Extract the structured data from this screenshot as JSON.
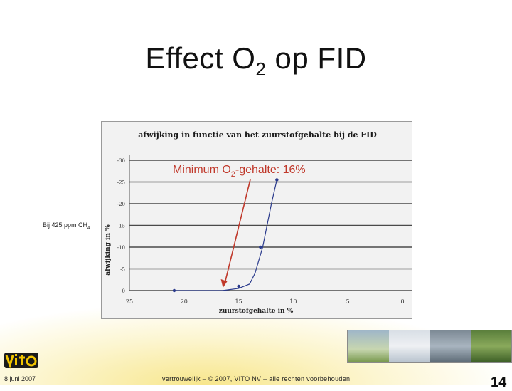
{
  "slide": {
    "title_main": "Effect O",
    "title_sub": "2",
    "title_end": " op FID",
    "footer_date": "8 juni 2007",
    "footer_copyright": "vertrouwelijk – © 2007, VITO NV – alle rechten voorbehouden",
    "page_number": "14"
  },
  "annotation": {
    "text_main": "Minimum O",
    "text_sub": "2",
    "text_end": "-gehalte: 16%",
    "color": "#c0392b"
  },
  "side_note": {
    "text_main": "Bij 425 ppm CH",
    "text_sub": "4"
  },
  "logo": {
    "text": "vito",
    "icon": "vito-logo"
  },
  "photo_strip": {
    "icon": "environment-photos"
  },
  "chart_data": {
    "type": "line",
    "title": "afwijking in functie van het zuurstofgehalte bij de FID",
    "xlabel": "zuurstofgehalte in %",
    "ylabel": "afwijking in %",
    "xlim": [
      25,
      0
    ],
    "ylim": [
      0,
      -30
    ],
    "x_ticks": [
      "25",
      "20",
      "15",
      "10",
      "5",
      "0"
    ],
    "y_ticks": [
      "-30",
      "-25",
      "-20",
      "-15",
      "-10",
      "-5",
      "0"
    ],
    "series": [
      {
        "color": "#2a3a8c",
        "x": [
          20.9,
          16.5,
          15.0,
          14.0,
          13.5,
          12.8,
          12.0,
          11.5
        ],
        "y": [
          0,
          0,
          -0.5,
          -1.5,
          -4,
          -10,
          -20,
          -25.5
        ]
      }
    ],
    "marker_points": {
      "x": [
        20.9,
        15.0,
        13.0,
        11.5
      ],
      "y": [
        0,
        -1,
        -10,
        -25.5
      ]
    },
    "grid": "horizontal"
  }
}
